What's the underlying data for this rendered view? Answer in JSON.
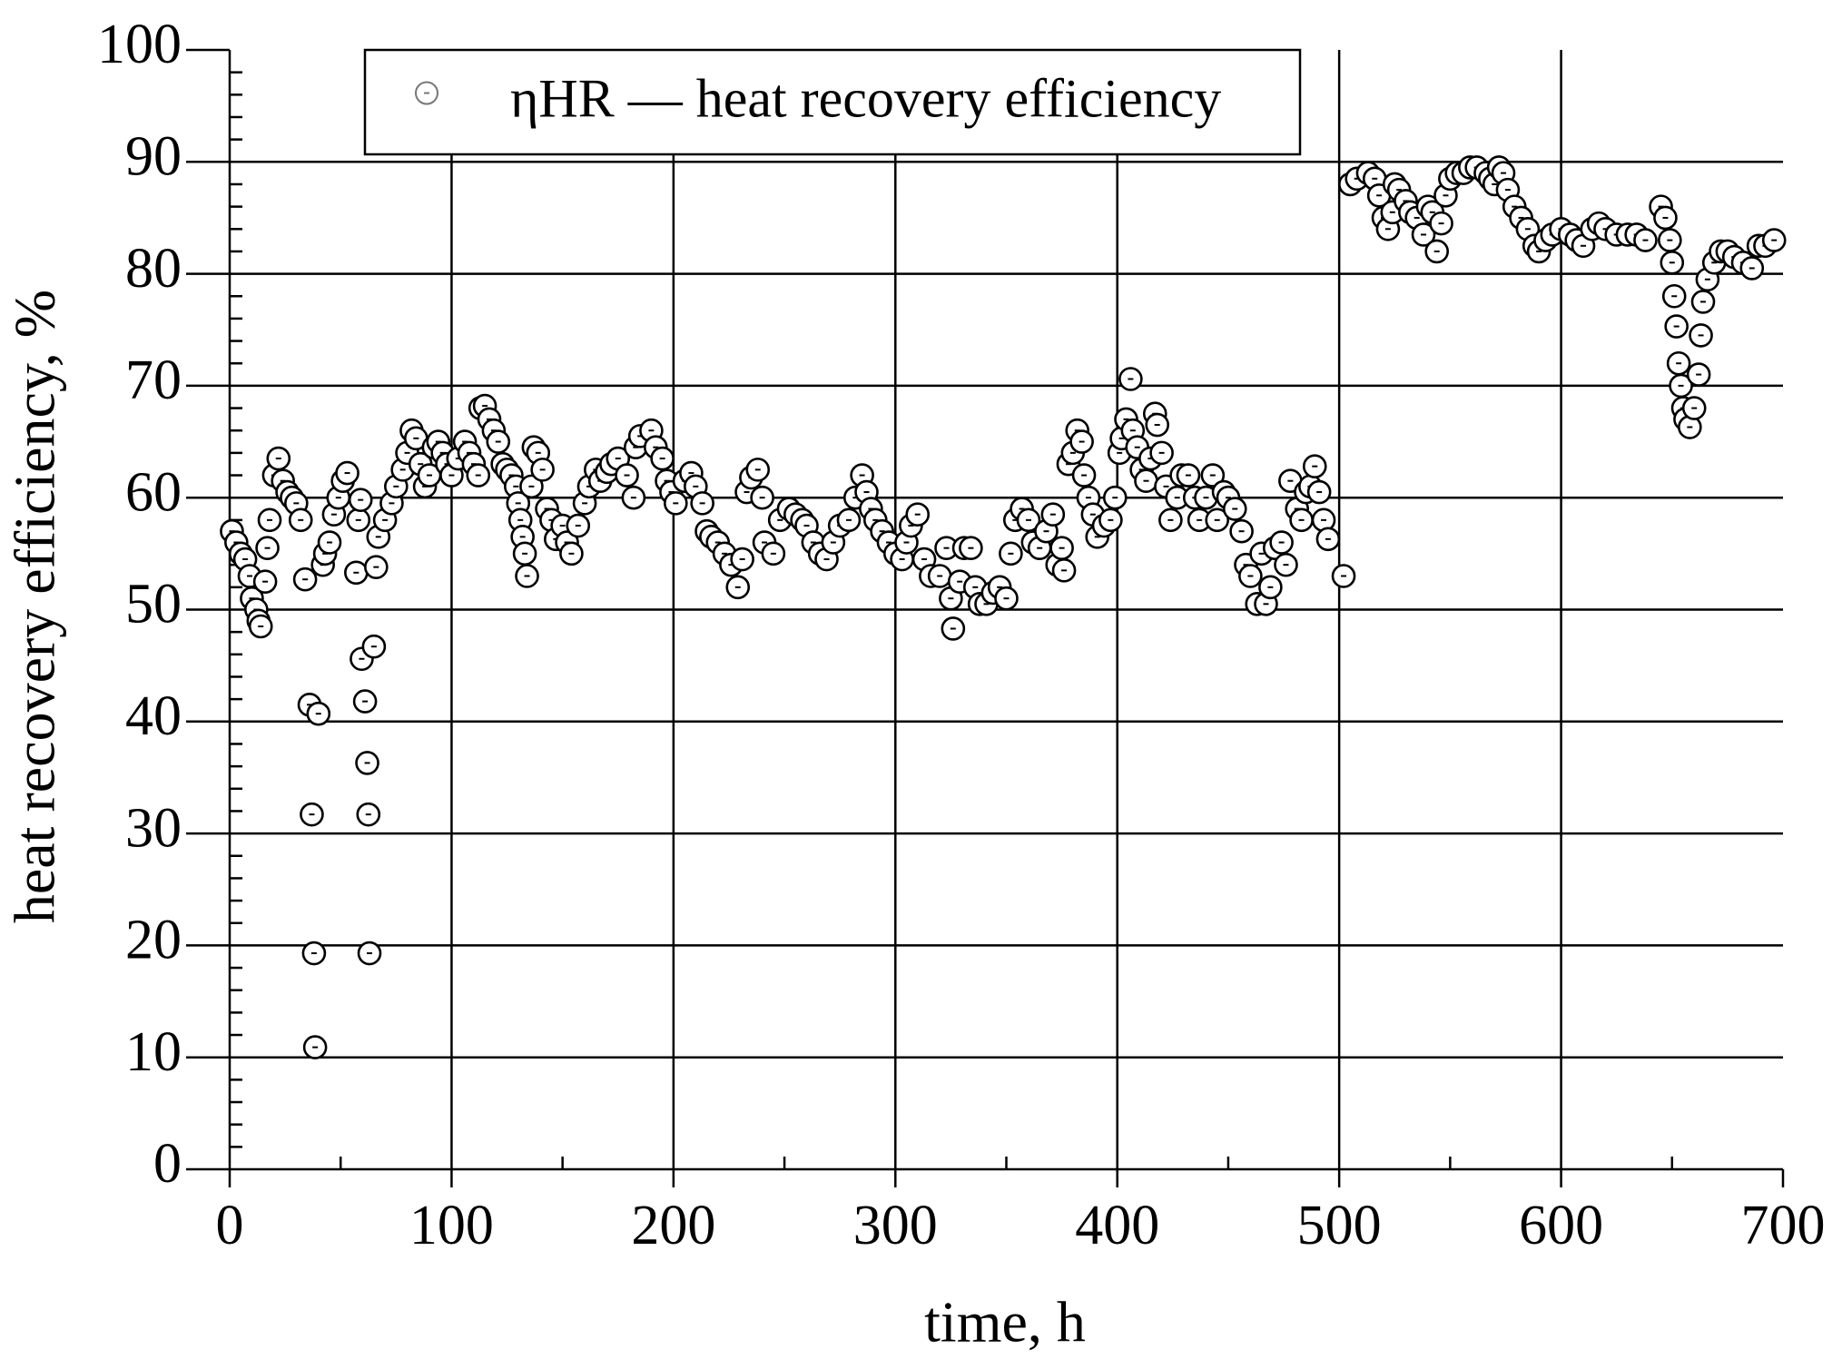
{
  "chart_data": {
    "type": "scatter",
    "xlabel": "time, h",
    "ylabel": "heat recovery efficiency, %",
    "xlim": [
      0,
      700
    ],
    "ylim": [
      0,
      100
    ],
    "xticks": [
      0,
      100,
      200,
      300,
      400,
      500,
      600,
      700
    ],
    "yticks": [
      0,
      10,
      20,
      30,
      40,
      50,
      60,
      70,
      80,
      90,
      100
    ],
    "xminorticks": [
      50,
      150,
      250,
      350,
      450,
      550,
      650
    ],
    "yminorticks": [
      2,
      4,
      6,
      8,
      12,
      14,
      16,
      18,
      22,
      24,
      26,
      28,
      32,
      34,
      36,
      38,
      42,
      44,
      46,
      48,
      52,
      54,
      56,
      58,
      62,
      64,
      66,
      68,
      72,
      74,
      76,
      78,
      82,
      84,
      86,
      88,
      92,
      94,
      96,
      98
    ],
    "grid": true,
    "legend": "top-left",
    "series": [
      {
        "name": "ηHR — heat recovery efficiency",
        "color": "#000000",
        "x": [
          1,
          3,
          5,
          7,
          9,
          10,
          12,
          13,
          14,
          16,
          17,
          18,
          20,
          22,
          24,
          26,
          28,
          30,
          32,
          34,
          36,
          37,
          38,
          38.5,
          40,
          42,
          43,
          45,
          47,
          49,
          51,
          53,
          57,
          58,
          59,
          59.5,
          61,
          62,
          62.5,
          63,
          65,
          66,
          67,
          70,
          73,
          75,
          78,
          80,
          82,
          84,
          86,
          88,
          90,
          92,
          94,
          96,
          98,
          100,
          103,
          106,
          108,
          110,
          112,
          113,
          115,
          117,
          119,
          121,
          123,
          125,
          127,
          129,
          130,
          131,
          132,
          133,
          134,
          136,
          137,
          139,
          141,
          143,
          145,
          147,
          150,
          152,
          154,
          157,
          160,
          162,
          165,
          167,
          170,
          172,
          175,
          179,
          182,
          183,
          185,
          190,
          192,
          195,
          197,
          199,
          201,
          205,
          208,
          210,
          213,
          215,
          217,
          220,
          223,
          226,
          229,
          231,
          233,
          235,
          238,
          240,
          241,
          245,
          248,
          252,
          255,
          258,
          260,
          263,
          266,
          269,
          272,
          275,
          279,
          282,
          285,
          287,
          289,
          291,
          294,
          297,
          300,
          303,
          305,
          307,
          310,
          313,
          316,
          320,
          323,
          325,
          326,
          329,
          331,
          334,
          336,
          338,
          341,
          344,
          347,
          350,
          352,
          354,
          357,
          360,
          362,
          365,
          368,
          371,
          373,
          375,
          376,
          378,
          380,
          382,
          384,
          385,
          387,
          389,
          391,
          394,
          397,
          399,
          401,
          402,
          404,
          406,
          407,
          409,
          411,
          413,
          415,
          417,
          418,
          420,
          422,
          424,
          427,
          429,
          432,
          435,
          437,
          440,
          443,
          445,
          448,
          450,
          453,
          456,
          458,
          460,
          463,
          465,
          467,
          469,
          471,
          474,
          476,
          478,
          481,
          483,
          485,
          487,
          489,
          491,
          493,
          495,
          502,
          505,
          508,
          513,
          516,
          518,
          520,
          522,
          524,
          525,
          527,
          530,
          532,
          535,
          538,
          540,
          542,
          544,
          546,
          548,
          550,
          553,
          556,
          559,
          562,
          566,
          568,
          570,
          572,
          574,
          576,
          579,
          582,
          585,
          588,
          590,
          593,
          596,
          600,
          604,
          607,
          610,
          614,
          617,
          620,
          625,
          630,
          634,
          638,
          645,
          647,
          649,
          650,
          651,
          652,
          653,
          654,
          655,
          656,
          658,
          660,
          662,
          663,
          664,
          666,
          669,
          672,
          675,
          678,
          682,
          686,
          689,
          692,
          696
        ],
        "values": [
          57,
          56,
          55,
          54.5,
          53,
          51,
          50,
          49,
          48.5,
          52.5,
          55.5,
          58,
          62,
          63.5,
          61.5,
          60.5,
          60,
          59.5,
          58,
          52.7,
          41.5,
          31.7,
          19.3,
          10.9,
          40.7,
          54,
          55,
          56,
          58.5,
          60,
          61.5,
          62.2,
          53.3,
          58,
          59.8,
          45.6,
          41.8,
          36.3,
          31.7,
          19.3,
          46.7,
          53.8,
          56.5,
          58,
          59.5,
          61,
          62.5,
          64,
          66,
          65.3,
          63,
          61,
          62,
          64.5,
          65,
          64,
          63,
          62,
          63.5,
          65,
          64,
          63,
          62,
          68,
          68.2,
          67,
          66,
          65,
          63,
          62.5,
          62,
          61,
          59.5,
          58,
          56.5,
          55,
          53,
          61,
          64.5,
          64,
          62.5,
          59,
          58,
          56.3,
          57.5,
          56,
          55,
          57.5,
          59.5,
          61,
          62.5,
          61.5,
          62.3,
          63,
          63.5,
          62,
          60,
          64.5,
          65.5,
          66,
          64.5,
          63.5,
          61.5,
          60.5,
          59.5,
          61.5,
          62.2,
          61,
          59.5,
          57,
          56.5,
          56,
          55,
          54,
          52,
          54.5,
          60.5,
          61.8,
          62.5,
          60,
          56,
          55,
          58,
          59,
          58.5,
          58,
          57.5,
          56,
          55,
          54.5,
          56,
          57.5,
          58,
          60,
          62,
          60.5,
          59,
          58,
          57,
          56,
          55,
          54.5,
          56,
          57.5,
          58.5,
          54.5,
          53,
          53,
          55.5,
          51,
          48.3,
          52.5,
          55.5,
          55.5,
          52,
          50.5,
          50.5,
          51.5,
          52,
          51,
          55,
          58,
          59,
          58,
          56,
          55.5,
          57,
          58.5,
          54,
          55.5,
          53.5,
          63,
          64,
          66,
          65,
          62,
          60,
          58.5,
          56.5,
          57.5,
          58,
          60,
          64,
          65.3,
          67,
          70.6,
          66,
          64.5,
          62.5,
          61.5,
          63.5,
          67.5,
          66.5,
          64,
          61,
          58,
          60,
          62,
          62,
          60,
          58,
          60,
          62,
          58,
          60.5,
          60,
          59,
          57,
          54,
          53,
          50.5,
          55,
          50.5,
          52,
          55.5,
          56,
          54,
          61.5,
          59,
          58,
          60.5,
          61,
          62.8,
          60.5,
          58,
          56.3,
          53,
          88,
          88.5,
          89,
          88.5,
          87,
          85,
          84,
          85.5,
          88,
          87.5,
          86.5,
          85.5,
          85,
          83.5,
          86,
          85.5,
          82,
          84.5,
          87,
          88.5,
          89,
          89,
          89.5,
          89.5,
          89,
          88.5,
          88,
          89.5,
          89,
          87.5,
          86,
          85,
          84,
          82.5,
          82,
          83,
          83.5,
          84,
          83.5,
          83,
          82.5,
          84,
          84.5,
          84,
          83.5,
          83.5,
          83.5,
          83,
          86,
          85,
          83,
          81,
          78,
          75.3,
          72,
          70,
          68,
          67,
          66.3,
          68,
          71,
          74.5,
          77.5,
          79.5,
          81,
          82,
          82,
          81.5,
          81,
          80.5,
          82.5,
          82.5,
          83
        ]
      }
    ]
  }
}
